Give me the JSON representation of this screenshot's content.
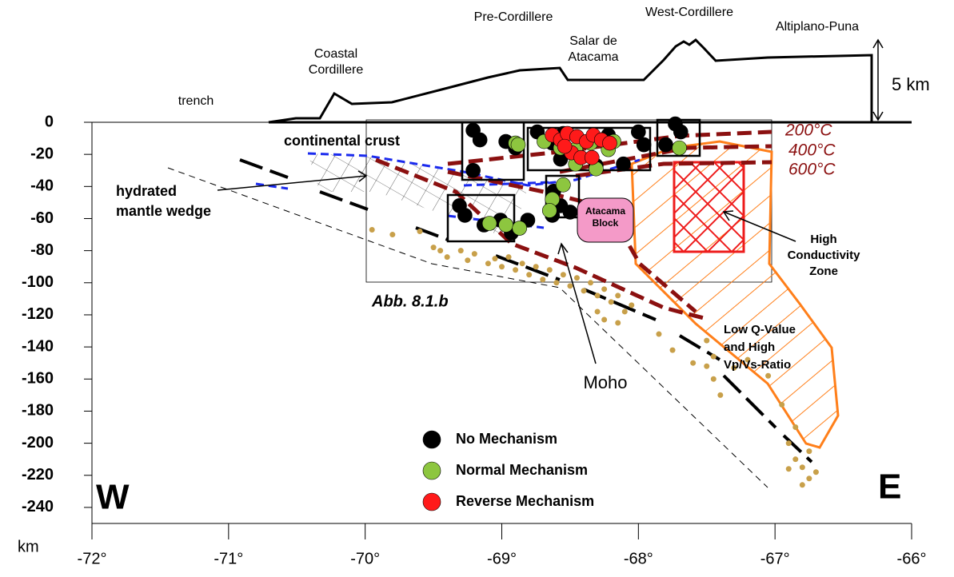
{
  "chart_data": {
    "type": "scatter",
    "xlim": [
      -72,
      -66
    ],
    "ylim": [
      -250,
      0
    ],
    "xticks": [
      {
        "value": -72,
        "label": "-72°"
      },
      {
        "value": -71,
        "label": "-71°"
      },
      {
        "value": -70,
        "label": "-70°"
      },
      {
        "value": -69,
        "label": "-69°"
      },
      {
        "value": -68,
        "label": "-68°"
      },
      {
        "value": -67,
        "label": "-67°"
      },
      {
        "value": -66,
        "label": "-66°"
      }
    ],
    "yticks": [
      0,
      -20,
      -40,
      -60,
      -80,
      -100,
      -120,
      -140,
      -160,
      -180,
      -200,
      -220,
      -240
    ],
    "ylabel": "km",
    "series": [
      {
        "color": "#c8a04a",
        "x": [
          -69.95,
          -69.8,
          -69.6,
          -69.5,
          -69.45,
          -69.4,
          -69.3,
          -69.25,
          -69.2,
          -69.1,
          -69.05,
          -69.0,
          -68.95,
          -68.9,
          -68.85,
          -68.8,
          -68.75,
          -68.7,
          -68.65,
          -68.6,
          -68.55,
          -68.5,
          -68.45,
          -68.4,
          -68.35,
          -68.3,
          -68.25,
          -68.2,
          -68.15,
          -68.1,
          -68.05,
          -68.3,
          -68.25,
          -68.15,
          -67.85,
          -67.75,
          -67.5,
          -67.6,
          -67.5,
          -67.45,
          -67.4,
          -67.45,
          -67.2,
          -67.05,
          -66.95,
          -66.85,
          -66.9,
          -66.85,
          -66.8,
          -66.75,
          -66.7,
          -66.8,
          -66.75,
          -66.9,
          -67.3
        ],
        "values": [
          -67,
          -70,
          -68,
          -78,
          -80,
          -84,
          -80,
          -86,
          -82,
          -88,
          -85,
          -90,
          -84,
          -92,
          -88,
          -95,
          -90,
          -98,
          -92,
          -100,
          -95,
          -102,
          -97,
          -105,
          -100,
          -108,
          -104,
          -112,
          -108,
          -118,
          -114,
          -118,
          -123,
          -125,
          -132,
          -142,
          -136,
          -150,
          -152,
          -160,
          -170,
          -146,
          -148,
          -158,
          -176,
          -190,
          -200,
          -210,
          -215,
          -222,
          -218,
          -226,
          -205,
          -216,
          -153
        ]
      },
      {
        "name": "No Mechanism",
        "color": "#000000",
        "x": [
          -69.21,
          -69.16,
          -68.97,
          -68.9,
          -69.21,
          -69.31,
          -69.27,
          -69.13,
          -69.01,
          -68.81,
          -68.93,
          -68.74,
          -68.63,
          -68.55,
          -68.22,
          -68.0,
          -67.96,
          -68.57,
          -68.31,
          -68.62,
          -68.57,
          -68.5,
          -68.63,
          -67.73,
          -67.69,
          -67.8,
          -68.11
        ],
        "values": [
          -5,
          -11,
          -12,
          -16,
          -30,
          -52,
          -58,
          -64,
          -61,
          -61,
          -69,
          -6,
          -13,
          -7,
          -8,
          -6,
          -14,
          -23,
          -27,
          -43,
          -52,
          -56,
          -58,
          -1,
          -6,
          -14,
          -26
        ]
      },
      {
        "name": "Normal Mechanism",
        "color": "#8dc63f",
        "x": [
          -68.9,
          -68.88,
          -68.69,
          -68.57,
          -68.46,
          -68.35,
          -68.22,
          -68.18,
          -68.55,
          -68.63,
          -68.65,
          -69.09,
          -68.97,
          -68.87,
          -67.7,
          -68.31,
          -68.46
        ],
        "values": [
          -13,
          -14,
          -12,
          -16,
          -17,
          -13,
          -17,
          -12,
          -39,
          -48,
          -55,
          -63,
          -64,
          -66,
          -16,
          -29,
          -26
        ]
      },
      {
        "name": "Reverse Mechanism",
        "color": "#ff1a1a",
        "x": [
          -68.63,
          -68.57,
          -68.52,
          -68.45,
          -68.38,
          -68.33,
          -68.27,
          -68.49,
          -68.42,
          -68.34,
          -68.54,
          -68.21
        ],
        "values": [
          -8,
          -11,
          -7,
          -9,
          -12,
          -8,
          -11,
          -19,
          -22,
          -22,
          -15,
          -13
        ]
      }
    ],
    "annotations": {
      "trench": "trench",
      "coastal": [
        "Coastal",
        "Cordillere"
      ],
      "pre": "Pre-Cordillere",
      "salar": [
        "Salar de",
        "Atacama"
      ],
      "west": "West-Cordillere",
      "altiplano": "Altiplano-Puna",
      "scale": "5 km",
      "crust": "continental crust",
      "wedge": [
        "hydrated",
        "mantle wedge"
      ],
      "abb": "Abb. 8.1.b",
      "moho": "Moho",
      "block": [
        "Atacama",
        "Block"
      ],
      "conductivity": [
        "High",
        "Conductivity",
        "Zone"
      ],
      "lowq": [
        "Low Q-Value",
        "and High",
        "Vp/Vs-Ratio"
      ],
      "iso": [
        "200°C",
        "400°C",
        "600°C"
      ],
      "west_label": "W",
      "east_label": "E"
    }
  }
}
